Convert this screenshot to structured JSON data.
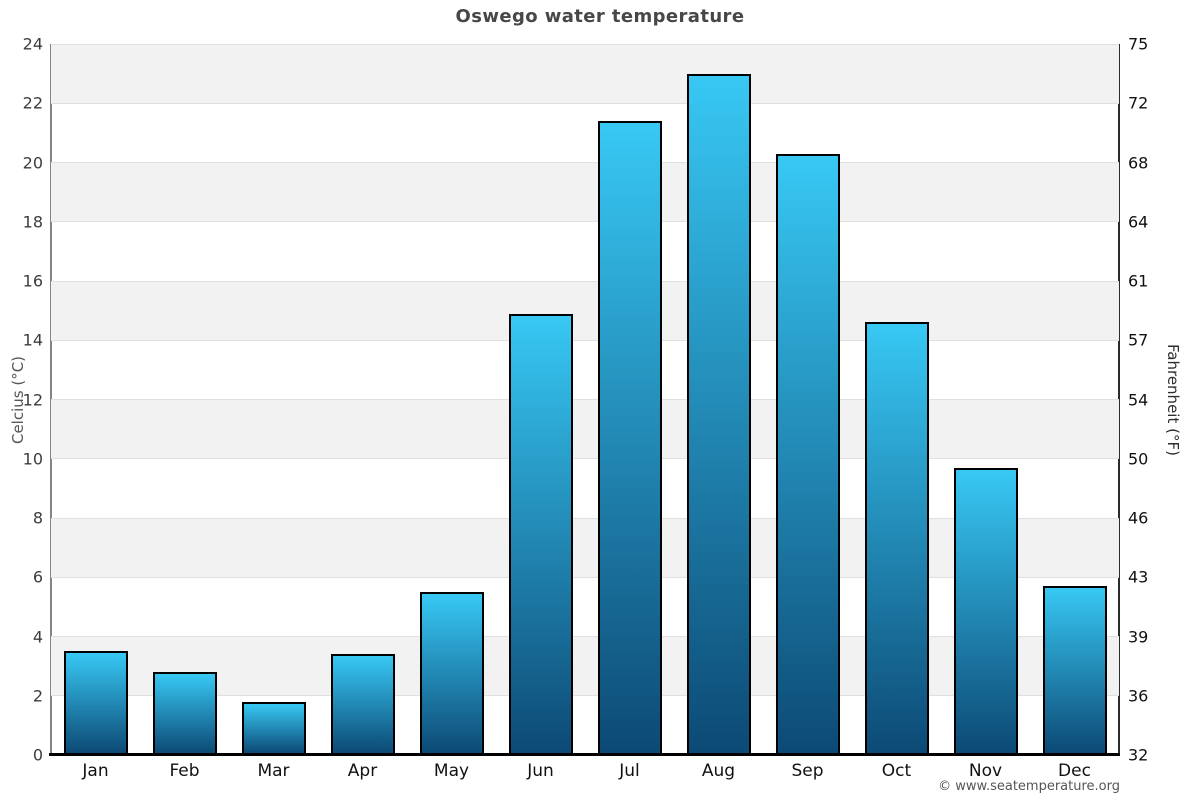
{
  "footer": "© www.seatemperature.org",
  "chart_data": {
    "type": "bar",
    "title": "Oswego water temperature",
    "categories": [
      "Jan",
      "Feb",
      "Mar",
      "Apr",
      "May",
      "Jun",
      "Jul",
      "Aug",
      "Sep",
      "Oct",
      "Nov",
      "Dec"
    ],
    "values": [
      3.5,
      2.8,
      1.8,
      3.4,
      5.5,
      14.9,
      21.4,
      23.0,
      20.3,
      14.6,
      9.7,
      5.7
    ],
    "unit": "°C",
    "ylabel_left": "Celcius (°C)",
    "ylabel_right": "Fahrenheit (°F)",
    "ylim": [
      0,
      24
    ],
    "y_ticks_celsius": [
      0,
      2,
      4,
      6,
      8,
      10,
      12,
      14,
      16,
      18,
      20,
      22,
      24
    ],
    "y_ticks_fahrenheit": [
      32,
      36,
      39,
      43,
      46,
      50,
      54,
      57,
      61,
      64,
      68,
      72,
      75
    ],
    "grid": "alternating-horizontal-bands",
    "legend": "none",
    "colors": {
      "bar_gradient_top": "#38c8f4",
      "bar_gradient_bottom": "#0c4a75",
      "bar_border": "#000000",
      "band_fill": "#f2f2f2",
      "gridline": "#e0e0e0",
      "title_text": "#474747",
      "axis_bottom": "#000000"
    }
  }
}
